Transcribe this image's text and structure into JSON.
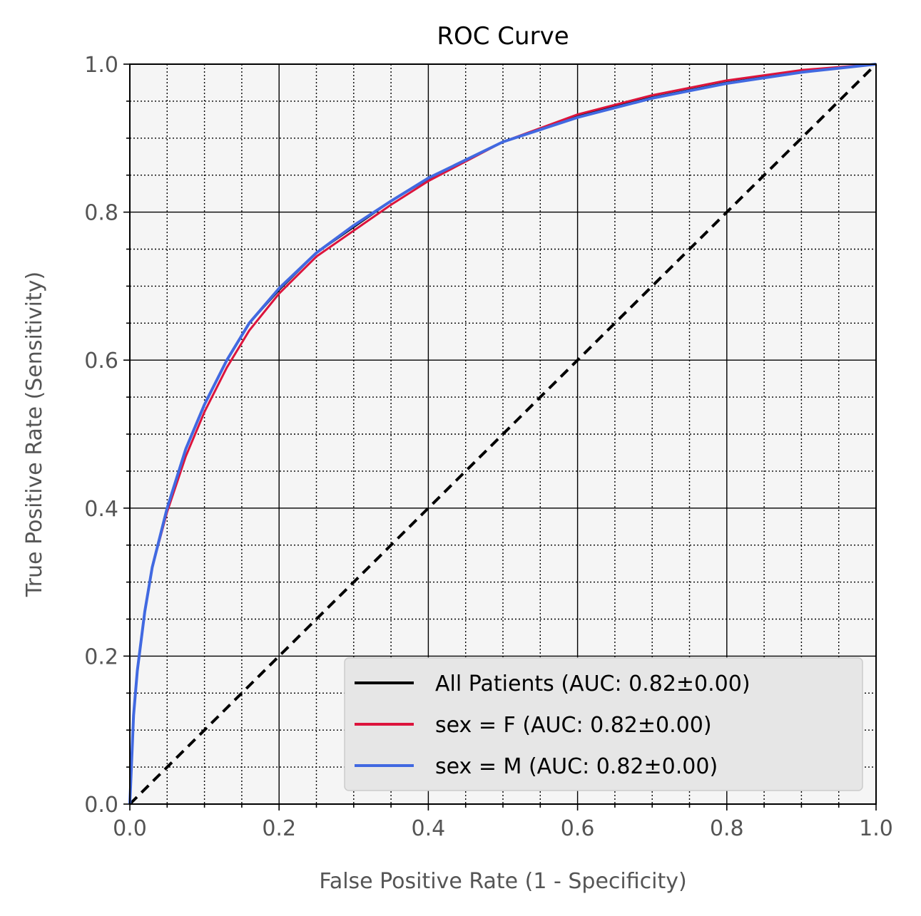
{
  "chart_data": {
    "type": "line",
    "title": "ROC Curve",
    "xlabel": "False Positive Rate (1 - Specificity)",
    "ylabel": "True Positive Rate (Sensitivity)",
    "xlim": [
      0.0,
      1.0
    ],
    "ylim": [
      0.0,
      1.0
    ],
    "xticks": [
      "0.0",
      "0.2",
      "0.4",
      "0.6",
      "0.8",
      "1.0"
    ],
    "yticks": [
      "0.0",
      "0.2",
      "0.4",
      "0.6",
      "0.8",
      "1.0"
    ],
    "grid": true,
    "minor_grid": true,
    "legend_position": "bottom-right",
    "background_color": "#f5f5f5",
    "series": [
      {
        "name": "All Patients (AUC: 0.82±0.00)",
        "color": "#000000",
        "x": [
          0,
          0.005,
          0.01,
          0.02,
          0.03,
          0.05,
          0.075,
          0.1,
          0.13,
          0.16,
          0.2,
          0.25,
          0.3,
          0.35,
          0.4,
          0.5,
          0.6,
          0.7,
          0.8,
          0.9,
          1.0
        ],
        "y": [
          0,
          0.12,
          0.18,
          0.26,
          0.32,
          0.4,
          0.48,
          0.54,
          0.6,
          0.65,
          0.695,
          0.745,
          0.78,
          0.815,
          0.845,
          0.895,
          0.93,
          0.955,
          0.975,
          0.99,
          1.0
        ]
      },
      {
        "name": "sex = F (AUC: 0.82±0.00)",
        "color": "#dc143c",
        "x": [
          0,
          0.005,
          0.01,
          0.02,
          0.03,
          0.05,
          0.075,
          0.1,
          0.13,
          0.16,
          0.2,
          0.25,
          0.3,
          0.35,
          0.4,
          0.5,
          0.6,
          0.7,
          0.8,
          0.9,
          1.0
        ],
        "y": [
          0,
          0.12,
          0.18,
          0.26,
          0.32,
          0.395,
          0.47,
          0.53,
          0.59,
          0.64,
          0.69,
          0.74,
          0.775,
          0.81,
          0.842,
          0.895,
          0.932,
          0.958,
          0.978,
          0.992,
          1.0
        ]
      },
      {
        "name": "sex = M (AUC: 0.82±0.00)",
        "color": "#4169e1",
        "x": [
          0,
          0.005,
          0.01,
          0.02,
          0.03,
          0.05,
          0.075,
          0.1,
          0.13,
          0.16,
          0.2,
          0.25,
          0.3,
          0.35,
          0.4,
          0.5,
          0.6,
          0.7,
          0.8,
          0.9,
          1.0
        ],
        "y": [
          0,
          0.12,
          0.18,
          0.26,
          0.32,
          0.4,
          0.48,
          0.54,
          0.6,
          0.65,
          0.697,
          0.745,
          0.782,
          0.815,
          0.846,
          0.895,
          0.928,
          0.954,
          0.974,
          0.989,
          1.0
        ]
      }
    ],
    "reference_line": {
      "color": "#000000",
      "x": [
        0,
        1
      ],
      "y": [
        0,
        1
      ]
    }
  }
}
